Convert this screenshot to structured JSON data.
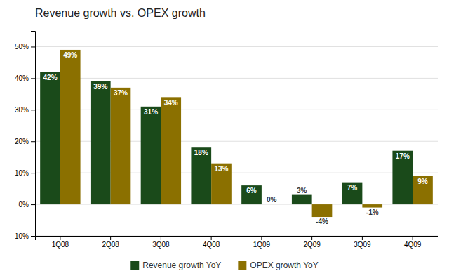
{
  "chart_data": {
    "type": "bar",
    "title": "Revenue growth vs. OPEX growth",
    "categories": [
      "1Q08",
      "2Q08",
      "3Q08",
      "4Q08",
      "1Q09",
      "2Q09",
      "3Q09",
      "4Q09"
    ],
    "series": [
      {
        "name": "Revenue growth YoY",
        "color": "#1a4a1a",
        "values": [
          42,
          39,
          31,
          18,
          6,
          3,
          7,
          17
        ],
        "value_labels": [
          "42%",
          "39%",
          "31%",
          "18%",
          "6%",
          "3%",
          "7%",
          "17%"
        ]
      },
      {
        "name": "OPEX growth YoY",
        "color": "#8b7000",
        "values": [
          49,
          37,
          34,
          13,
          0,
          -4,
          -1,
          9
        ],
        "value_labels": [
          "49%",
          "37%",
          "34%",
          "13%",
          "0%",
          "-4%",
          "-1%",
          "9%"
        ]
      }
    ],
    "ylim": [
      -10,
      55
    ],
    "yticks": [
      {
        "value": -10,
        "label": "-10%"
      },
      {
        "value": 0,
        "label": "0%"
      },
      {
        "value": 10,
        "label": "10%"
      },
      {
        "value": 20,
        "label": "20%"
      },
      {
        "value": 30,
        "label": "30%"
      },
      {
        "value": 40,
        "label": "40%"
      },
      {
        "value": 50,
        "label": "50%"
      }
    ],
    "grid": true,
    "legend": "bottom",
    "data_labels": true
  }
}
